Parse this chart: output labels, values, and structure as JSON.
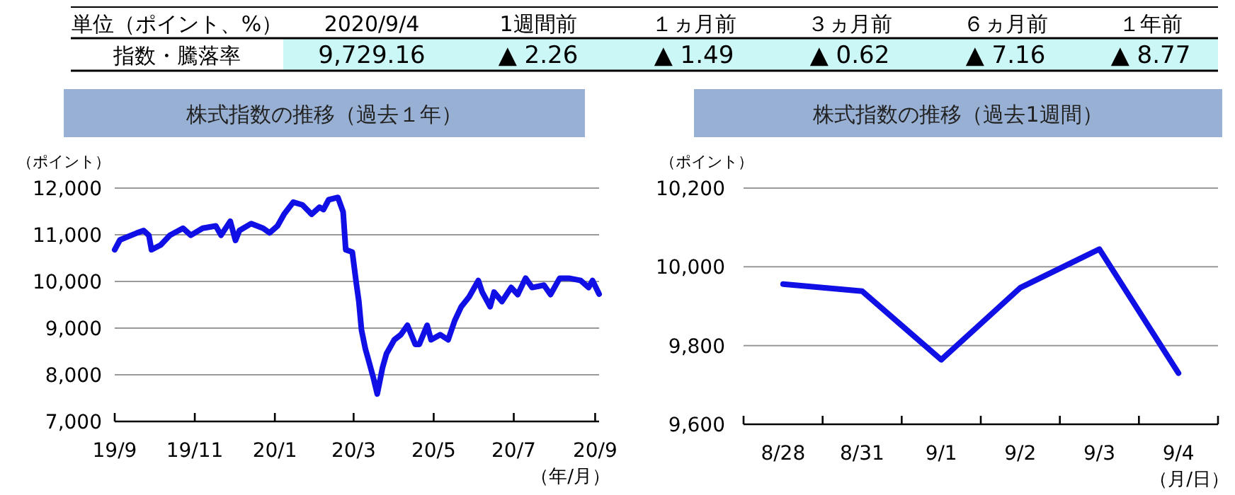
{
  "chart_data": [
    {
      "type": "other",
      "annotations": [
        "単位（ポイント、%）",
        "2020/9/4",
        "1週間前",
        "１ヵ月前",
        "３ヵ月前",
        "６ヵ月前",
        "１年前",
        "指数・騰落率",
        "9,729.16",
        "▲ 2.26",
        "▲ 1.49",
        "▲ 0.62",
        "▲ 7.16",
        "▲ 8.77"
      ]
    },
    {
      "type": "line",
      "title": "株式指数の推移（過去１年）",
      "ylabel": "（ポイント）",
      "xlabel": "（年/月）",
      "grid": "y",
      "xlim": [
        "2019-09-01",
        "2020-09-04"
      ],
      "ylim": [
        7000,
        12000
      ],
      "yticks": [
        {
          "value": 7000,
          "label": "7,000"
        },
        {
          "value": 8000,
          "label": "8,000"
        },
        {
          "value": 9000,
          "label": "9,000"
        },
        {
          "value": 10000,
          "label": "10,000"
        },
        {
          "value": 11000,
          "label": "11,000"
        },
        {
          "value": 12000,
          "label": "12,000"
        }
      ],
      "xticks": [
        {
          "value": "2019-09-01",
          "label": "19/9"
        },
        {
          "value": "2019-11-01",
          "label": "19/11"
        },
        {
          "value": "2020-01-01",
          "label": "20/1"
        },
        {
          "value": "2020-03-01",
          "label": "20/3"
        },
        {
          "value": "2020-05-01",
          "label": "20/5"
        },
        {
          "value": "2020-07-01",
          "label": "20/7"
        },
        {
          "value": "2020-09-01",
          "label": "20/9"
        }
      ],
      "x": [
        "2019-09-01",
        "2019-09-05",
        "2019-09-18",
        "2019-09-23",
        "2019-09-27",
        "2019-09-29",
        "2019-10-06",
        "2019-10-13",
        "2019-10-23",
        "2019-10-29",
        "2019-11-07",
        "2019-11-17",
        "2019-11-21",
        "2019-11-28",
        "2019-12-02",
        "2019-12-05",
        "2019-12-14",
        "2019-12-23",
        "2019-12-28",
        "2020-01-03",
        "2020-01-08",
        "2020-01-15",
        "2020-01-22",
        "2020-01-29",
        "2020-02-04",
        "2020-02-07",
        "2020-02-11",
        "2020-02-18",
        "2020-02-22",
        "2020-02-24",
        "2020-02-29",
        "2020-03-03",
        "2020-03-05",
        "2020-03-07",
        "2020-03-10",
        "2020-03-12",
        "2020-03-16",
        "2020-03-19",
        "2020-03-23",
        "2020-03-26",
        "2020-04-01",
        "2020-04-06",
        "2020-04-11",
        "2020-04-17",
        "2020-04-20",
        "2020-04-26",
        "2020-04-29",
        "2020-05-06",
        "2020-05-12",
        "2020-05-17",
        "2020-05-22",
        "2020-05-28",
        "2020-06-04",
        "2020-06-07",
        "2020-06-13",
        "2020-06-16",
        "2020-06-22",
        "2020-06-29",
        "2020-07-04",
        "2020-07-10",
        "2020-07-15",
        "2020-07-24",
        "2020-07-29",
        "2020-08-05",
        "2020-08-12",
        "2020-08-21",
        "2020-08-27",
        "2020-08-30",
        "2020-09-04"
      ],
      "series": [
        {
          "color": "#0f0fe6",
          "values": [
            10680,
            10890,
            11040,
            11090,
            10990,
            10680,
            10780,
            10990,
            11140,
            10990,
            11140,
            11190,
            10990,
            11290,
            10880,
            11090,
            11240,
            11140,
            11040,
            11190,
            11440,
            11700,
            11640,
            11440,
            11590,
            11540,
            11750,
            11800,
            11490,
            10680,
            10630,
            9970,
            9570,
            8960,
            8550,
            8350,
            7940,
            7590,
            8150,
            8450,
            8750,
            8860,
            9060,
            8650,
            8650,
            9060,
            8750,
            8860,
            8750,
            9160,
            9460,
            9670,
            10020,
            9770,
            9460,
            9770,
            9570,
            9870,
            9720,
            10070,
            9870,
            9920,
            9720,
            10070,
            10070,
            10020,
            9870,
            10020,
            9730
          ]
        }
      ]
    },
    {
      "type": "line",
      "title": "株式指数の推移（過去1週間）",
      "ylabel": "（ポイント）",
      "xlabel": "（月/日）",
      "grid": "y",
      "categories": [
        "8/28",
        "8/31",
        "9/1",
        "9/2",
        "9/3",
        "9/4"
      ],
      "ylim": [
        9600,
        10200
      ],
      "yticks": [
        {
          "value": 9600,
          "label": "9,600"
        },
        {
          "value": 9800,
          "label": "9,800"
        },
        {
          "value": 10000,
          "label": "10,000"
        },
        {
          "value": 10200,
          "label": "10,200"
        }
      ],
      "series": [
        {
          "color": "#0f0fe6",
          "values": [
            9956,
            9938,
            9764,
            9947,
            10045,
            9730
          ]
        }
      ]
    }
  ]
}
